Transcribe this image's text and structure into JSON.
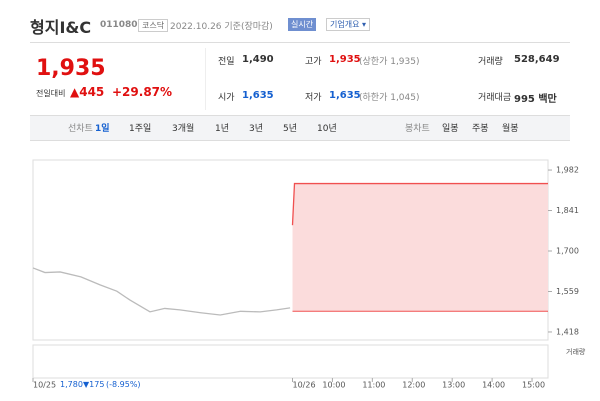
{
  "header": {
    "name": "형지I&C",
    "code": "011080",
    "market": "코스닥",
    "date": "2022.10.26 기준(장마감)",
    "realtime": "실시간",
    "company_info": "기업개요 ▾"
  },
  "price": {
    "current": "1,935",
    "change_label": "전일대비",
    "change": "▲445",
    "rate": "+29.87%"
  },
  "stats": [
    {
      "label": "전일",
      "value": "1,490"
    },
    {
      "label": "고가",
      "value": "1,935",
      "note": "(상한가 1,935)"
    },
    {
      "label": "거래량",
      "value": "528,649"
    },
    {
      "label": "시가",
      "value": "1,635"
    },
    {
      "label": "저가",
      "value": "1,635",
      "note": "(하한가 1,045)"
    },
    {
      "label": "거래대금",
      "value": "995 백만"
    }
  ],
  "tabs": {
    "line_label": "선차트",
    "periods": [
      "1일",
      "1주일",
      "3개월",
      "1년",
      "3년",
      "5년",
      "10년"
    ],
    "candle_label": "봉차트",
    "candles": [
      "일봉",
      "주봉",
      "월봉"
    ]
  },
  "footer": {
    "price": "1,780",
    "change": "▼175",
    "rate": "(-8.95%)"
  },
  "chart_data": {
    "type": "line",
    "volume_label": "거래량",
    "xlim": [
      0,
      12.9
    ],
    "xticks": [
      {
        "value": 0,
        "label": "10/25"
      },
      {
        "value": 6.5,
        "label": "10/26"
      },
      {
        "value": 7.5,
        "label": "10:00"
      },
      {
        "value": 8.5,
        "label": "11:00"
      },
      {
        "value": 9.5,
        "label": "12:00"
      },
      {
        "value": 10.5,
        "label": "13:00"
      },
      {
        "value": 11.5,
        "label": "14:00"
      },
      {
        "value": 12.5,
        "label": "15:00"
      }
    ],
    "ylim": [
      1390,
      2017
    ],
    "yticks": [
      {
        "value": 1982,
        "label": "1,982"
      },
      {
        "value": 1841,
        "label": "1,841"
      },
      {
        "value": 1700,
        "label": "1,700"
      },
      {
        "value": 1559,
        "label": "1,559"
      },
      {
        "value": 1418,
        "label": "1,418"
      }
    ],
    "baseline": 1490,
    "series": [
      {
        "name": "10/25",
        "color": "#bbbbbb",
        "x": [
          0,
          0.3,
          0.68,
          1.2,
          1.68,
          2.1,
          2.43,
          2.93,
          3.3,
          3.68,
          4.2,
          4.69,
          5.2,
          5.69,
          6.1,
          6.44
        ],
        "values": [
          1641,
          1625,
          1627,
          1610,
          1582,
          1560,
          1529,
          1488,
          1500,
          1495,
          1485,
          1477,
          1490,
          1488,
          1495,
          1502
        ]
      },
      {
        "name": "10/26",
        "color": "#f05050",
        "area": "#fbdcdc",
        "x": [
          6.5,
          6.55,
          12.9
        ],
        "values": [
          1790,
          1935,
          1935
        ]
      }
    ]
  }
}
